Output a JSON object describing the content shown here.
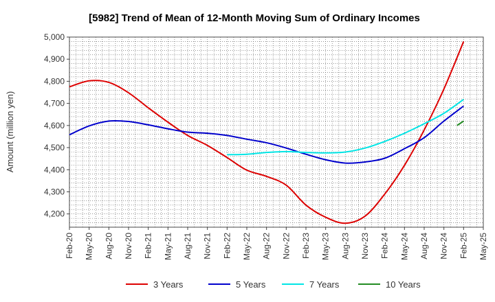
{
  "chart_data": {
    "type": "line",
    "title": "[5982]  Trend of Mean of 12-Month Moving Sum of Ordinary Incomes",
    "ylabel": "Amount (million yen)",
    "xlabel": "",
    "ylim": [
      4140,
      5000
    ],
    "yticks": [
      4200,
      4300,
      4400,
      4500,
      4600,
      4700,
      4800,
      4900,
      5000
    ],
    "ytick_labels": [
      "4,200",
      "4,300",
      "4,400",
      "4,500",
      "4,600",
      "4,700",
      "4,800",
      "4,900",
      "5,000"
    ],
    "categories": [
      "Feb-20",
      "May-20",
      "Aug-20",
      "Nov-20",
      "Feb-21",
      "May-21",
      "Aug-21",
      "Nov-21",
      "Feb-22",
      "May-22",
      "Aug-22",
      "Nov-22",
      "Feb-23",
      "May-23",
      "Aug-23",
      "Nov-23",
      "Feb-24",
      "May-24",
      "Aug-24",
      "Nov-24",
      "Feb-25",
      "May-25"
    ],
    "grid": true,
    "legend_position": "bottom",
    "series": [
      {
        "name": "3 Years",
        "color": "#dd0000",
        "values": [
          4775,
          4802,
          4795,
          4748,
          4680,
          4615,
          4555,
          4510,
          4455,
          4398,
          4370,
          4330,
          4240,
          4185,
          4158,
          4190,
          4290,
          4420,
          4580,
          4765,
          4980,
          null
        ]
      },
      {
        "name": "5 Years",
        "color": "#0000cc",
        "values": [
          4558,
          4598,
          4620,
          4618,
          4603,
          4585,
          4570,
          4565,
          4555,
          4538,
          4522,
          4498,
          4470,
          4445,
          4430,
          4435,
          4452,
          4495,
          4545,
          4620,
          4688,
          null
        ]
      },
      {
        "name": "7 Years",
        "color": "#00e5e5",
        "values": [
          null,
          null,
          null,
          null,
          null,
          null,
          null,
          null,
          4468,
          4470,
          4478,
          4482,
          4478,
          4476,
          4480,
          4498,
          4528,
          4565,
          4608,
          4655,
          4718,
          null
        ]
      },
      {
        "name": "10 Years",
        "color": "#228b22",
        "values": [
          null,
          null,
          null,
          null,
          null,
          null,
          null,
          null,
          null,
          null,
          null,
          null,
          null,
          null,
          null,
          null,
          null,
          null,
          null,
          null,
          4620,
          null
        ],
        "segment_start": 4600
      }
    ]
  }
}
